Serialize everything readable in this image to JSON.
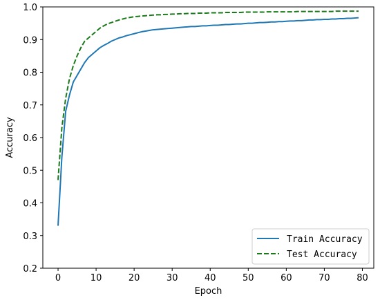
{
  "chart_data": {
    "type": "line",
    "xlabel": "Epoch",
    "ylabel": "Accuracy",
    "xlim": [
      -4,
      83
    ],
    "ylim": [
      0.2,
      1.0
    ],
    "xticks": [
      0,
      10,
      20,
      30,
      40,
      50,
      60,
      70,
      80
    ],
    "yticks": [
      0.2,
      0.3,
      0.4,
      0.5,
      0.6,
      0.7,
      0.8,
      0.9,
      1.0
    ],
    "xtick_labels": [
      "0",
      "10",
      "20",
      "30",
      "40",
      "50",
      "60",
      "70",
      "80"
    ],
    "ytick_labels": [
      "0.2",
      "0.3",
      "0.4",
      "0.5",
      "0.6",
      "0.7",
      "0.8",
      "0.9",
      "1.0"
    ],
    "grid": false,
    "legend_position": "bottom-right",
    "x": [
      0,
      1,
      2,
      3,
      4,
      5,
      6,
      7,
      8,
      9,
      10,
      11,
      12,
      13,
      14,
      15,
      16,
      17,
      18,
      19,
      20,
      21,
      22,
      23,
      24,
      25,
      26,
      27,
      28,
      29,
      30,
      31,
      32,
      33,
      34,
      35,
      36,
      37,
      38,
      39,
      40,
      41,
      42,
      43,
      44,
      45,
      46,
      47,
      48,
      49,
      50,
      51,
      52,
      53,
      54,
      55,
      56,
      57,
      58,
      59,
      60,
      61,
      62,
      63,
      64,
      65,
      66,
      67,
      68,
      69,
      70,
      71,
      72,
      73,
      74,
      75,
      76,
      77,
      78,
      79
    ],
    "series": [
      {
        "name": "Train Accuracy",
        "color": "#1f77b4",
        "style": "solid",
        "values": [
          0.33,
          0.54,
          0.68,
          0.73,
          0.77,
          0.79,
          0.81,
          0.83,
          0.845,
          0.855,
          0.865,
          0.875,
          0.882,
          0.888,
          0.895,
          0.9,
          0.905,
          0.908,
          0.912,
          0.915,
          0.918,
          0.921,
          0.924,
          0.926,
          0.928,
          0.93,
          0.931,
          0.932,
          0.933,
          0.934,
          0.935,
          0.936,
          0.937,
          0.938,
          0.939,
          0.94,
          0.94,
          0.941,
          0.942,
          0.942,
          0.943,
          0.944,
          0.944,
          0.945,
          0.946,
          0.946,
          0.947,
          0.948,
          0.948,
          0.949,
          0.95,
          0.95,
          0.951,
          0.952,
          0.952,
          0.953,
          0.954,
          0.954,
          0.955,
          0.955,
          0.956,
          0.957,
          0.957,
          0.958,
          0.958,
          0.959,
          0.96,
          0.96,
          0.961,
          0.961,
          0.962,
          0.962,
          0.963,
          0.963,
          0.964,
          0.964,
          0.965,
          0.965,
          0.966,
          0.967
        ]
      },
      {
        "name": "Test Accuracy",
        "color": "#1a7a1a",
        "style": "dashed",
        "values": [
          0.47,
          0.63,
          0.72,
          0.78,
          0.82,
          0.85,
          0.875,
          0.895,
          0.905,
          0.915,
          0.925,
          0.935,
          0.942,
          0.948,
          0.952,
          0.956,
          0.96,
          0.963,
          0.966,
          0.968,
          0.97,
          0.971,
          0.972,
          0.973,
          0.974,
          0.975,
          0.976,
          0.976,
          0.977,
          0.977,
          0.978,
          0.978,
          0.979,
          0.979,
          0.98,
          0.98,
          0.98,
          0.981,
          0.981,
          0.981,
          0.982,
          0.982,
          0.982,
          0.982,
          0.983,
          0.983,
          0.983,
          0.983,
          0.983,
          0.984,
          0.984,
          0.984,
          0.984,
          0.984,
          0.984,
          0.985,
          0.985,
          0.985,
          0.985,
          0.985,
          0.985,
          0.985,
          0.985,
          0.986,
          0.986,
          0.986,
          0.986,
          0.986,
          0.986,
          0.986,
          0.986,
          0.986,
          0.986,
          0.987,
          0.987,
          0.987,
          0.987,
          0.987,
          0.987,
          0.987
        ]
      }
    ]
  }
}
